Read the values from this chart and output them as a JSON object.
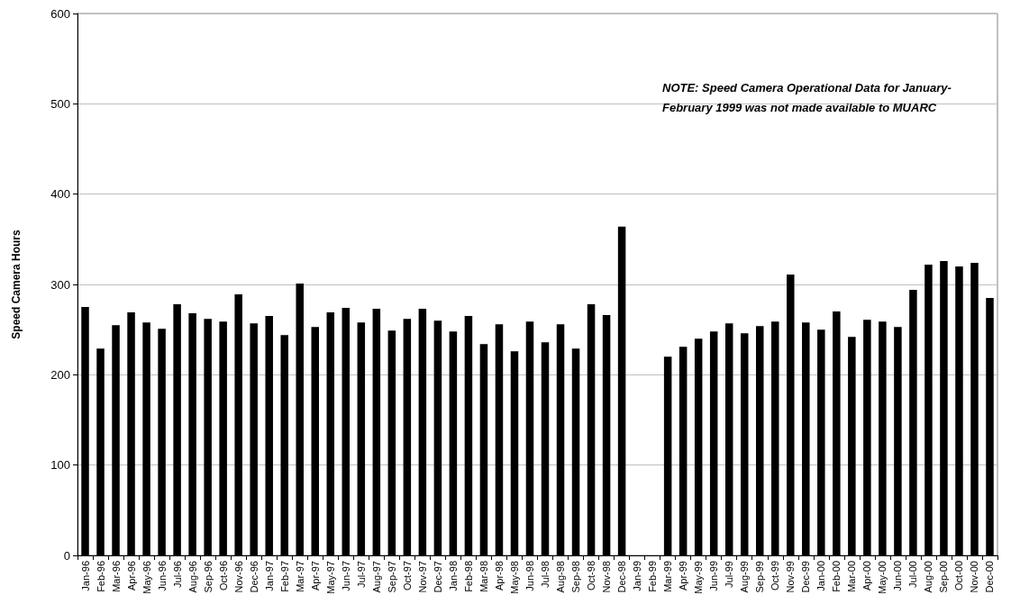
{
  "chart_data": {
    "type": "bar",
    "ylabel": "Speed Camera Hours",
    "categories": [
      "Jan-96",
      "Feb-96",
      "Mar-96",
      "Apr-96",
      "May-96",
      "Jun-96",
      "Jul-96",
      "Aug-96",
      "Sep-96",
      "Oct-96",
      "Nov-96",
      "Dec-96",
      "Jan-97",
      "Feb-97",
      "Mar-97",
      "Apr-97",
      "May-97",
      "Jun-97",
      "Jul-97",
      "Aug-97",
      "Sep-97",
      "Oct-97",
      "Nov-97",
      "Dec-97",
      "Jan-98",
      "Feb-98",
      "Mar-98",
      "Apr-98",
      "May-98",
      "Jun-98",
      "Jul-98",
      "Aug-98",
      "Sep-98",
      "Oct-98",
      "Nov-98",
      "Dec-98",
      "Jan-99",
      "Feb-99",
      "Mar-99",
      "Apr-99",
      "May-99",
      "Jun-99",
      "Jul-99",
      "Aug-99",
      "Sep-99",
      "Oct-99",
      "Nov-99",
      "Dec-99",
      "Jan-00",
      "Feb-00",
      "Mar-00",
      "Apr-00",
      "May-00",
      "Jun-00",
      "Jul-00",
      "Aug-00",
      "Sep-00",
      "Oct-00",
      "Nov-00",
      "Dec-00"
    ],
    "values": [
      275,
      229,
      255,
      269,
      258,
      251,
      278,
      268,
      262,
      259,
      289,
      257,
      265,
      244,
      301,
      253,
      269,
      274,
      258,
      273,
      249,
      262,
      273,
      260,
      248,
      265,
      234,
      256,
      226,
      259,
      236,
      256,
      229,
      278,
      266,
      364,
      null,
      null,
      220,
      231,
      240,
      248,
      257,
      246,
      254,
      259,
      311,
      258,
      250,
      270,
      242,
      261,
      259,
      253,
      294,
      322,
      326,
      320,
      324,
      285
    ],
    "color": "#000000",
    "ylim": [
      0,
      600
    ],
    "yticks": [
      0,
      100,
      200,
      300,
      400,
      500,
      600
    ],
    "grid": "y",
    "annotations": [
      "NOTE: Speed Camera Operational Data for January-February 1999 was not made available to MUARC"
    ]
  }
}
